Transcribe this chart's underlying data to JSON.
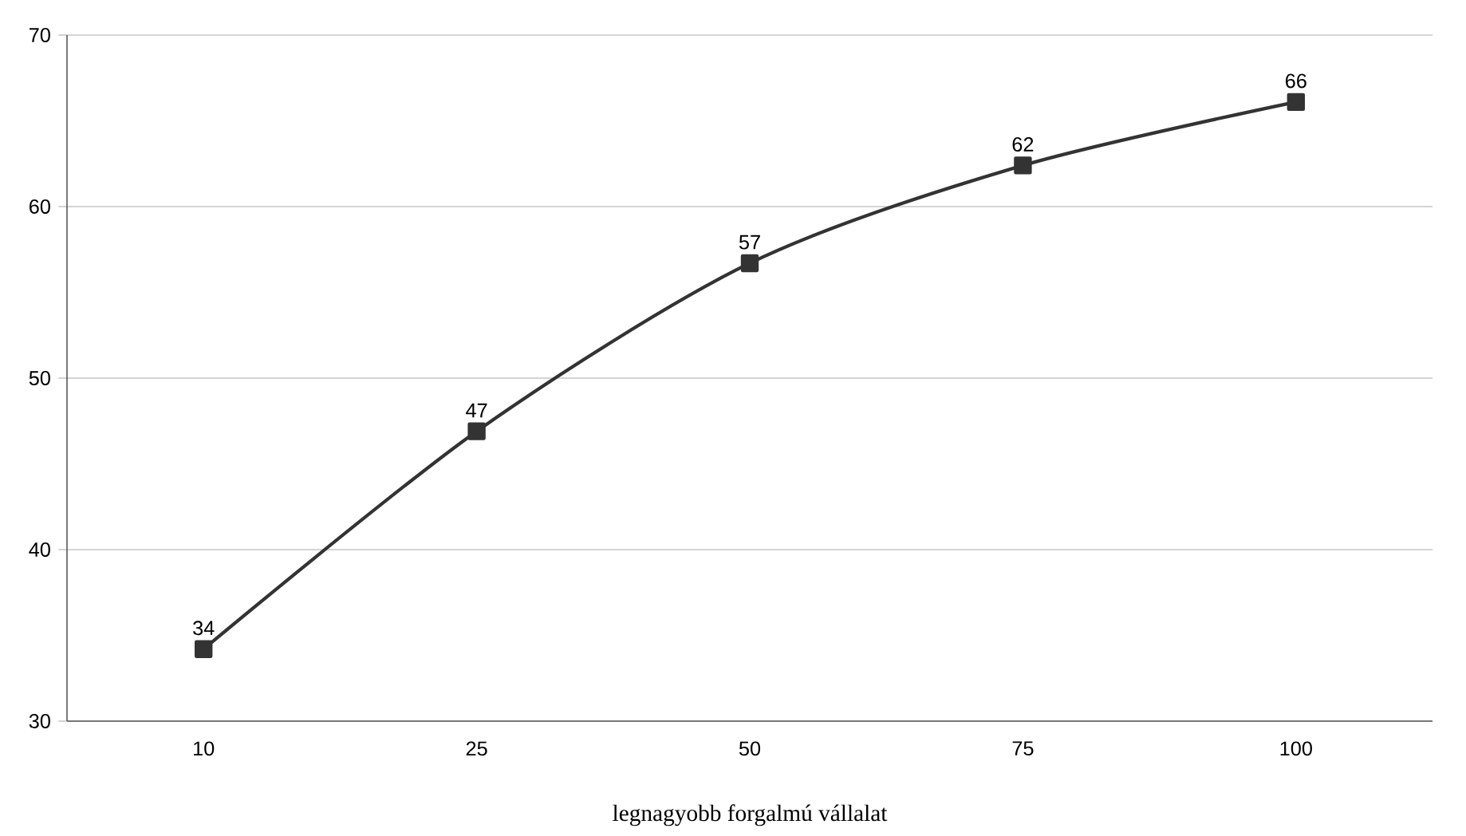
{
  "chart_data": {
    "type": "line",
    "xlabel": "legnagyobb forgalmú vállalat",
    "categories": [
      "10",
      "25",
      "50",
      "75",
      "100"
    ],
    "values": [
      34.2,
      46.9,
      56.7,
      62.4,
      66.1
    ],
    "value_labels": [
      "34",
      "47",
      "57",
      "62",
      "66"
    ],
    "color": "#333333",
    "marker": "square",
    "line_style": "solid",
    "ylim": [
      30,
      70
    ],
    "yticks": [
      30,
      40,
      50,
      60,
      70
    ],
    "grid": "y"
  }
}
